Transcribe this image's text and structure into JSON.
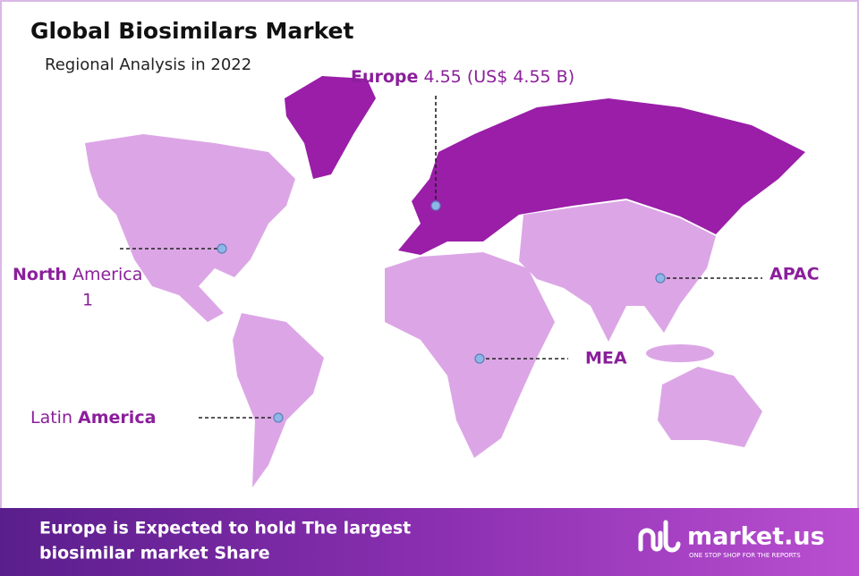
{
  "header": {
    "title": "Global Biosimilars Market",
    "subtitle": "Regional Analysis in 2022"
  },
  "regions": [
    {
      "bold": "Europe",
      "value": "4.55 (US$ 4.55 B)"
    },
    {
      "bold": "North",
      "regular": "America",
      "value": "1"
    },
    {
      "regular": "Latin",
      "bold": "America"
    },
    {
      "bold": "MEA"
    },
    {
      "bold": "APAC"
    }
  ],
  "footer": {
    "headline": [
      "Europe is Expected to hold The largest",
      "biosimilar market Share"
    ],
    "brand": "market.us",
    "tagline": "ONE STOP SHOP FOR THE REPORTS"
  }
}
